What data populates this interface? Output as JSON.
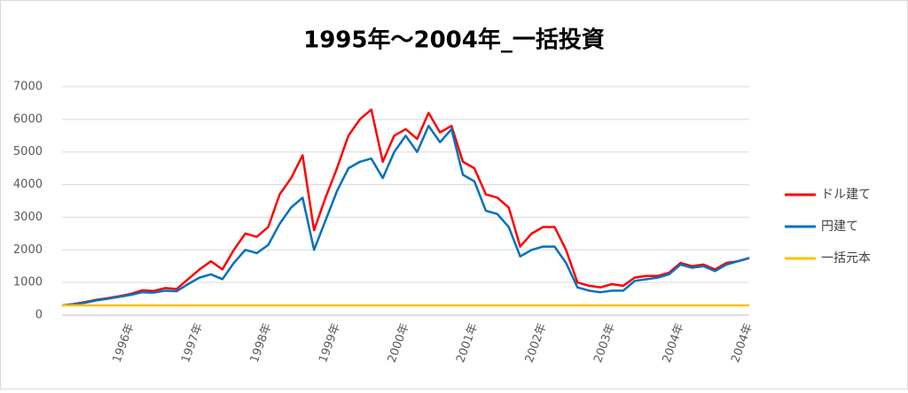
{
  "chart_data": {
    "type": "line",
    "title": "1995年～2004年_一括投資",
    "categories": [
      null,
      null,
      null,
      null,
      null,
      null,
      "1996年",
      null,
      null,
      null,
      null,
      null,
      "1997年",
      null,
      null,
      null,
      null,
      null,
      "1998年",
      null,
      null,
      null,
      null,
      null,
      "1999年",
      null,
      null,
      null,
      null,
      null,
      "2000年",
      null,
      null,
      null,
      null,
      null,
      "2001年",
      null,
      null,
      null,
      null,
      null,
      "2002年",
      null,
      null,
      null,
      null,
      null,
      "2003年",
      null,
      null,
      null,
      null,
      null,
      "2004年",
      null,
      null,
      null,
      null,
      null,
      "2004年"
    ],
    "series": [
      {
        "name": "ドル建て",
        "color": "#ff0000",
        "values": [
          300,
          340,
          400,
          470,
          520,
          580,
          650,
          760,
          740,
          830,
          800,
          1100,
          1400,
          1650,
          1400,
          2000,
          2500,
          2400,
          2700,
          3700,
          4200,
          4900,
          2600,
          3600,
          4500,
          5500,
          6000,
          6300,
          4700,
          5500,
          5700,
          5400,
          6200,
          5600,
          5800,
          4700,
          4500,
          3700,
          3600,
          3300,
          2100,
          2500,
          2700,
          2700,
          2000,
          1000,
          900,
          850,
          950,
          900,
          1150,
          1200,
          1200,
          1300,
          1600,
          1500,
          1550,
          1400,
          1600,
          1650,
          1750
        ]
      },
      {
        "name": "円建て",
        "color": "#0070c0",
        "values": [
          300,
          330,
          380,
          450,
          500,
          560,
          620,
          700,
          690,
          750,
          730,
          950,
          1150,
          1250,
          1100,
          1600,
          2000,
          1900,
          2150,
          2800,
          3300,
          3600,
          2000,
          2900,
          3800,
          4500,
          4700,
          4800,
          4200,
          5000,
          5500,
          5000,
          5800,
          5300,
          5700,
          4300,
          4100,
          3200,
          3100,
          2700,
          1800,
          2000,
          2100,
          2100,
          1600,
          850,
          750,
          700,
          750,
          750,
          1050,
          1100,
          1150,
          1250,
          1550,
          1450,
          1500,
          1350,
          1550,
          1650,
          1750
        ]
      },
      {
        "name": "一括元本",
        "color": "#ffc000",
        "values": [
          300,
          300,
          300,
          300,
          300,
          300,
          300,
          300,
          300,
          300,
          300,
          300,
          300,
          300,
          300,
          300,
          300,
          300,
          300,
          300,
          300,
          300,
          300,
          300,
          300,
          300,
          300,
          300,
          300,
          300,
          300,
          300,
          300,
          300,
          300,
          300,
          300,
          300,
          300,
          300,
          300,
          300,
          300,
          300,
          300,
          300,
          300,
          300,
          300,
          300,
          300,
          300,
          300,
          300,
          300,
          300,
          300,
          300,
          300,
          300,
          300
        ]
      }
    ],
    "ylim": [
      0,
      7000
    ],
    "yticks": [
      0,
      1000,
      2000,
      3000,
      4000,
      5000,
      6000,
      7000
    ],
    "grid": true,
    "legend": "right"
  }
}
